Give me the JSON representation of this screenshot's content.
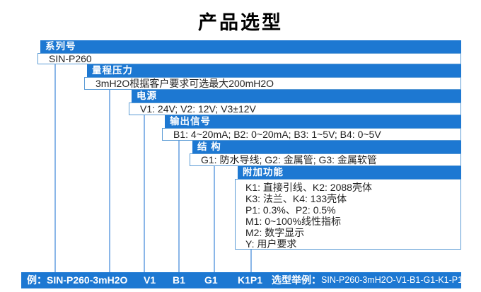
{
  "title": "产品选型",
  "accent_color": "#1d78d2",
  "connector_color": "#8ab6e8",
  "sections": [
    {
      "id": "series",
      "header": "系列号",
      "lines": [
        "SIN-P260"
      ]
    },
    {
      "id": "range-pressure",
      "header": "量程压力",
      "lines": [
        "3mH2O根据客户要求可选最大200mH2O"
      ]
    },
    {
      "id": "power-supply",
      "header": "电源",
      "lines": [
        "V1: 24V;  V2: 12V;  V3±12V"
      ]
    },
    {
      "id": "output-signal",
      "header": "输出信号",
      "lines": [
        "B1: 4~20mA;  B2: 0~20mA;  B3: 1~5V;  B4: 0~5V"
      ]
    },
    {
      "id": "structure",
      "header": "结 构",
      "lines": [
        "G1: 防水导线;  G2: 金属管;  G3: 金属软管"
      ]
    },
    {
      "id": "extra-functions",
      "header": "附加功能",
      "lines": [
        "K1: 直接引线、K2: 2088壳体",
        "K3: 法兰、K4: 133壳体",
        "P1: 0.3%、P2: 0.5%",
        "M1: 0~100%线性指标",
        "M2: 数字显示",
        "Y: 用户要求"
      ]
    }
  ],
  "example_bar": {
    "label": "例：SIN-P260-3mH2O",
    "codes": [
      "V1",
      "B1",
      "G1",
      "K1P1"
    ],
    "example_label": "选型举例：",
    "example_value": "SIN-P260-3mH2O-V1-B1-G1-K1-P1"
  }
}
